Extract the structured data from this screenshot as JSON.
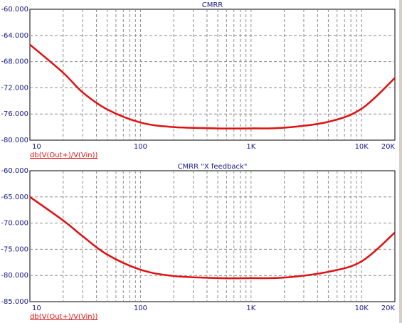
{
  "chart_data": [
    {
      "type": "line",
      "title": "CMRR",
      "log_x": true,
      "grid": true,
      "x": [
        10,
        20,
        30,
        50,
        100,
        200,
        500,
        1000,
        2000,
        5000,
        10000,
        20000
      ],
      "series": [
        {
          "name": "db(V(Out+)/V(Vin))",
          "color": "#e01010",
          "values": [
            -65.4,
            -69.7,
            -72.7,
            -75.3,
            -77.3,
            -78.0,
            -78.2,
            -78.2,
            -78.1,
            -77.2,
            -75.2,
            -70.5
          ]
        }
      ],
      "xlim": [
        10,
        20000
      ],
      "xticks": [
        {
          "value": 10,
          "label": "10"
        },
        {
          "value": 100,
          "label": "100"
        },
        {
          "value": 1000,
          "label": "1K"
        },
        {
          "value": 10000,
          "label": "10K"
        },
        {
          "value": 20000,
          "label": "20K"
        }
      ],
      "xminor": [
        20,
        30,
        40,
        50,
        60,
        70,
        80,
        90,
        200,
        300,
        400,
        500,
        600,
        700,
        800,
        900,
        2000,
        3000,
        4000,
        5000,
        6000,
        7000,
        8000,
        9000
      ],
      "ylim": [
        -80,
        -60
      ],
      "yticks": [
        {
          "value": -80,
          "label": "-80.000"
        },
        {
          "value": -76,
          "label": "-76.000"
        },
        {
          "value": -72,
          "label": "-72.000"
        },
        {
          "value": -68,
          "label": "-68.000"
        },
        {
          "value": -64,
          "label": "-64.000"
        },
        {
          "value": -60,
          "label": "-60.000"
        }
      ]
    },
    {
      "type": "line",
      "title": "CMRR \"X feedback\"",
      "log_x": true,
      "grid": true,
      "x": [
        10,
        20,
        30,
        50,
        100,
        200,
        500,
        1000,
        2000,
        5000,
        10000,
        20000
      ],
      "series": [
        {
          "name": "db(V(Out+)/V(Vin))",
          "color": "#e01010",
          "values": [
            -65.0,
            -69.5,
            -72.5,
            -76.0,
            -78.9,
            -80.1,
            -80.5,
            -80.5,
            -80.4,
            -79.3,
            -77.3,
            -71.8
          ]
        }
      ],
      "xlim": [
        10,
        20000
      ],
      "xticks": [
        {
          "value": 10,
          "label": "10"
        },
        {
          "value": 100,
          "label": "100"
        },
        {
          "value": 1000,
          "label": "1K"
        },
        {
          "value": 10000,
          "label": "10K"
        },
        {
          "value": 20000,
          "label": "20K"
        }
      ],
      "xminor": [
        20,
        30,
        40,
        50,
        60,
        70,
        80,
        90,
        200,
        300,
        400,
        500,
        600,
        700,
        800,
        900,
        2000,
        3000,
        4000,
        5000,
        6000,
        7000,
        8000,
        9000
      ],
      "ylim": [
        -85,
        -60
      ],
      "yticks": [
        {
          "value": -85,
          "label": "-85.000"
        },
        {
          "value": -80,
          "label": "-80.000"
        },
        {
          "value": -75,
          "label": "-75.000"
        },
        {
          "value": -70,
          "label": "-70.000"
        },
        {
          "value": -65,
          "label": "-65.000"
        },
        {
          "value": -60,
          "label": "-60.000"
        }
      ]
    }
  ]
}
